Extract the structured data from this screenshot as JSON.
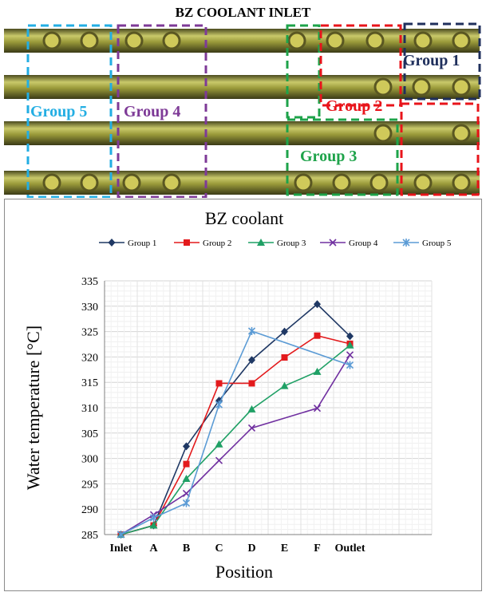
{
  "header": {
    "title": "BZ COOLANT INLET"
  },
  "photo_labels": [
    {
      "text": "Group 1",
      "color": "#1f2f5c"
    },
    {
      "text": "Group 2",
      "color": "#e8141b"
    },
    {
      "text": "Group 3",
      "color": "#1ea34a"
    },
    {
      "text": "Group 4",
      "color": "#7e3a97"
    },
    {
      "text": "Group 5",
      "color": "#23aee3"
    }
  ],
  "chart_data": {
    "type": "line",
    "title": "BZ coolant",
    "xlabel": "Position",
    "ylabel": "Water temperature [°C]",
    "categories": [
      "Inlet",
      "A",
      "B",
      "C",
      "D",
      "E",
      "F",
      "Outlet"
    ],
    "ylim": [
      285,
      335
    ],
    "yticks": [
      285,
      290,
      295,
      300,
      305,
      310,
      315,
      320,
      325,
      330,
      335
    ],
    "grid": true,
    "legend": "top",
    "series": [
      {
        "name": "Group 1",
        "color": "#1f3864",
        "marker": "diamond",
        "values": [
          285,
          286.8,
          302.4,
          311.4,
          319.4,
          325,
          330.4,
          324.1
        ]
      },
      {
        "name": "Group 2",
        "color": "#e31a1c",
        "marker": "square",
        "values": [
          285,
          286.8,
          298.9,
          314.8,
          314.8,
          319.9,
          324.2,
          322.6
        ]
      },
      {
        "name": "Group 3",
        "color": "#1fa065",
        "marker": "triangle",
        "values": [
          285,
          286.8,
          296,
          302.8,
          309.7,
          314.3,
          317.1,
          322.3
        ]
      },
      {
        "name": "Group 4",
        "color": "#7030a0",
        "marker": "x",
        "values": [
          285,
          288.9,
          293.1,
          299.6,
          306,
          null,
          309.9,
          320.4
        ]
      },
      {
        "name": "Group 5",
        "color": "#5b9bd5",
        "marker": "star",
        "values": [
          285,
          288.3,
          291.2,
          310.6,
          325.1,
          null,
          null,
          318.4
        ]
      }
    ]
  }
}
